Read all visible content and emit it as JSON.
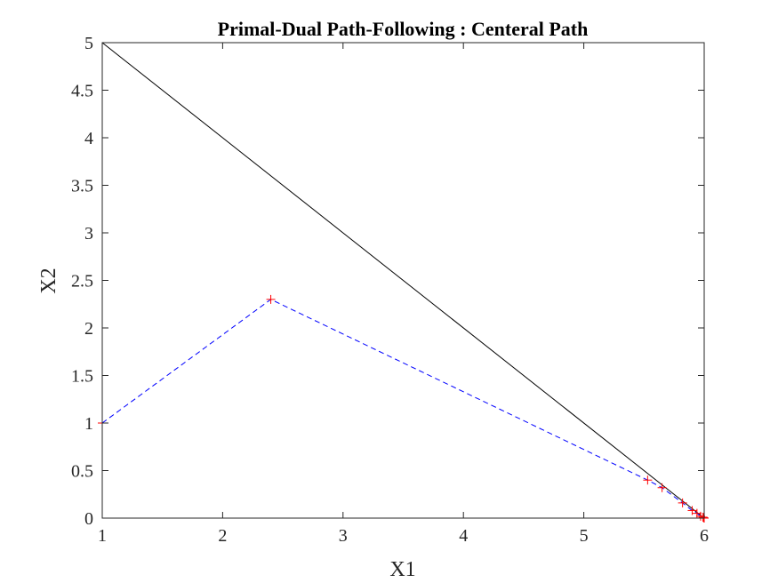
{
  "chart_data": {
    "type": "line",
    "title": "Primal-Dual Path-Following : Centeral Path",
    "xlabel": "X1",
    "ylabel": "X2",
    "xlim": [
      1,
      6
    ],
    "ylim": [
      0,
      5
    ],
    "x_ticks": [
      "1",
      "2",
      "3",
      "4",
      "5",
      "6"
    ],
    "y_ticks": [
      "0",
      "0.5",
      "1",
      "1.5",
      "2",
      "2.5",
      "3",
      "3.5",
      "4",
      "4.5",
      "5"
    ],
    "grid": false,
    "series": [
      {
        "style": "solid",
        "color": "#000000",
        "x": [
          1,
          6
        ],
        "y": [
          5,
          0
        ]
      },
      {
        "style": "dashed",
        "color": "#0000ff",
        "marker": "plus",
        "marker_color": "#ff0000",
        "x": [
          1.0,
          2.4,
          5.53,
          5.65,
          5.82,
          5.9,
          5.94,
          5.97,
          5.99,
          5.995,
          6.0
        ],
        "y": [
          1.0,
          2.3,
          0.4,
          0.32,
          0.16,
          0.08,
          0.05,
          0.02,
          0.01,
          0.005,
          0.0
        ]
      }
    ]
  }
}
